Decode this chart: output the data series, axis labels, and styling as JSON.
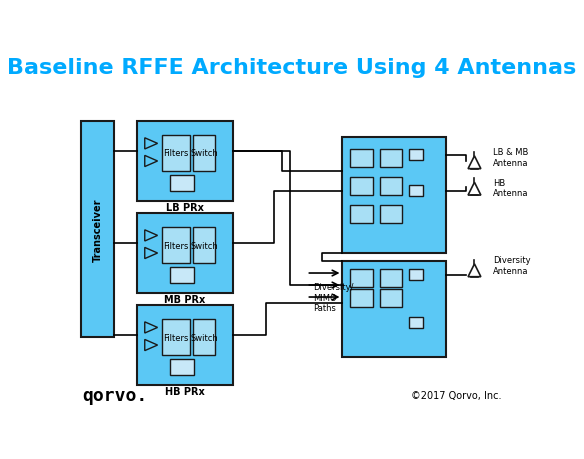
{
  "title": "Baseline RFFE Architecture Using 4 Antennas",
  "title_color": "#00AAFF",
  "title_fontsize": 16,
  "bg_color": "#FFFFFF",
  "box_fill": "#5BC8F5",
  "box_edge": "#1A1A1A",
  "inner_fill": "#A8DFF5",
  "inner_edge": "#1A1A1A",
  "small_box_fill": "#C8E8F8",
  "transceiver_label": "Transceiver",
  "lb_label": "LB PRx",
  "mb_label": "MB PRx",
  "hb_label": "HB PRx",
  "filters_label": "Filters",
  "switch_label": "Switch",
  "lb_mb_antenna_label": "LB & MB\nAntenna",
  "hb_antenna_label": "HB\nAntenna",
  "diversity_antenna_label": "Diversity\nAntenna",
  "diversity_mimo_label": "Diversity/\nMIMO\nPaths",
  "copyright_label": "©2017 Qorvo, Inc.",
  "qorvo_label": "qorvo.",
  "line_color": "#000000",
  "arrow_color": "#000000"
}
